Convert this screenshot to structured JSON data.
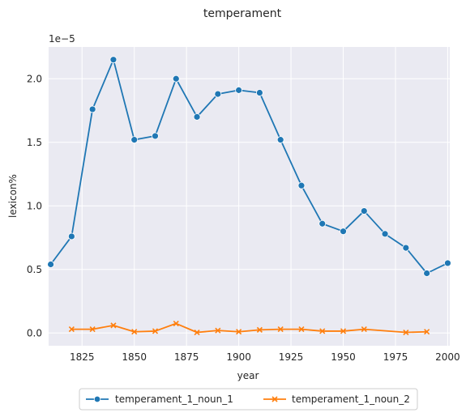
{
  "chart_data": {
    "type": "line",
    "title": "temperament",
    "xlabel": "year",
    "ylabel": "lexicon%",
    "y_offset_label": "1e−5",
    "xlim": [
      1809,
      2001
    ],
    "ylim": [
      -0.1,
      2.25
    ],
    "x_ticks": [
      1825,
      1850,
      1875,
      1900,
      1925,
      1950,
      1975,
      2000
    ],
    "y_ticks": [
      0.0,
      0.5,
      1.0,
      1.5,
      2.0
    ],
    "y_tick_labels": [
      "0.0",
      "0.5",
      "1.0",
      "1.5",
      "2.0"
    ],
    "grid": true,
    "legend_position": "bottom-center-outside",
    "series": [
      {
        "name": "temperament_1_noun_1",
        "color": "#1f77b4",
        "marker": "circle",
        "x": [
          1810,
          1820,
          1830,
          1840,
          1850,
          1860,
          1870,
          1880,
          1890,
          1900,
          1910,
          1920,
          1930,
          1940,
          1950,
          1960,
          1970,
          1980,
          1990,
          2000
        ],
        "y": [
          0.54,
          0.76,
          1.76,
          2.15,
          1.52,
          1.55,
          2.0,
          1.7,
          1.88,
          1.91,
          1.89,
          1.52,
          1.16,
          0.86,
          0.8,
          0.96,
          0.78,
          0.67,
          0.47,
          0.55
        ]
      },
      {
        "name": "temperament_1_noun_2",
        "color": "#ff7f0e",
        "marker": "x",
        "x": [
          1820,
          1830,
          1840,
          1850,
          1860,
          1870,
          1880,
          1890,
          1900,
          1910,
          1920,
          1930,
          1940,
          1950,
          1960,
          1980,
          1990
        ],
        "y": [
          0.03,
          0.03,
          0.06,
          0.01,
          0.015,
          0.075,
          0.005,
          0.02,
          0.01,
          0.025,
          0.03,
          0.03,
          0.015,
          0.015,
          0.03,
          0.005,
          0.01
        ]
      }
    ]
  }
}
